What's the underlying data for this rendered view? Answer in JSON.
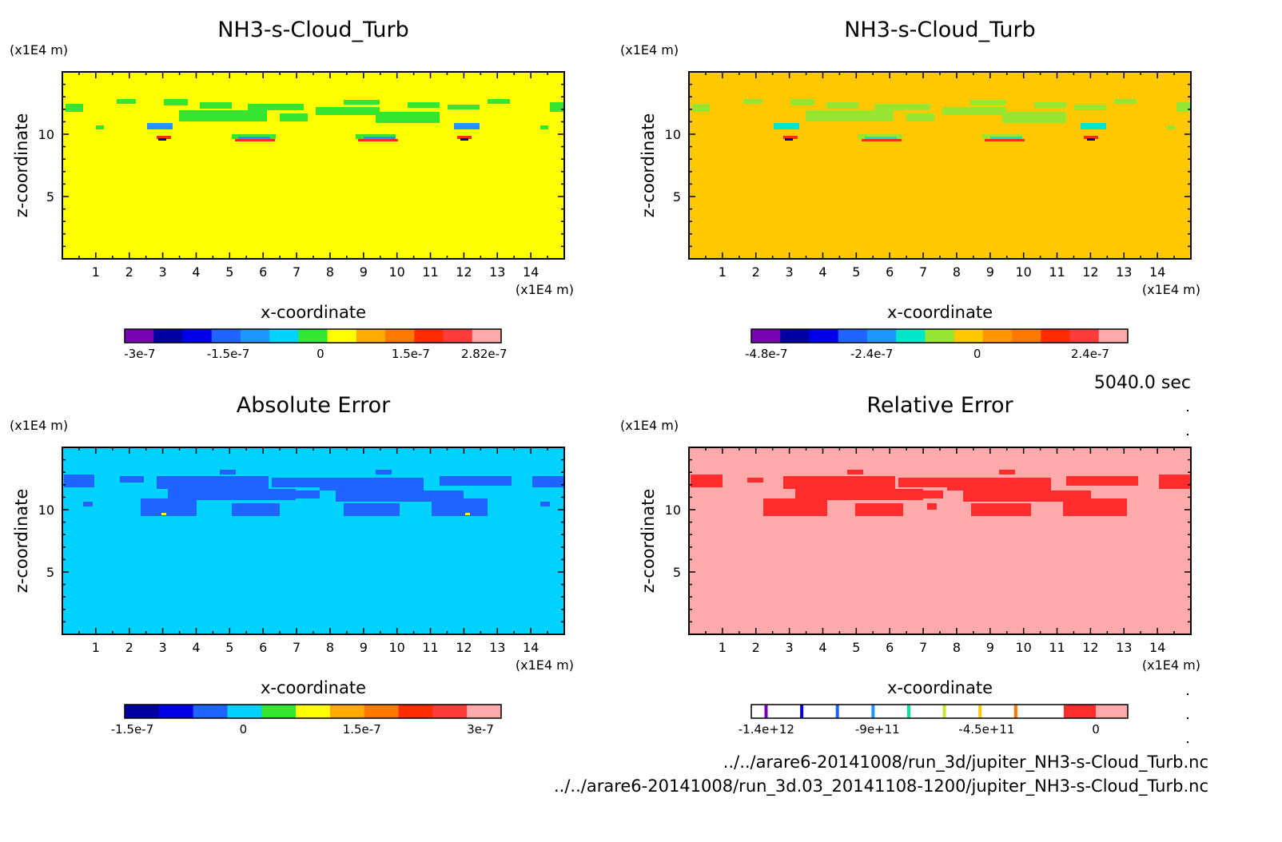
{
  "time_label": "5040.0 sec",
  "files": [
    "../../arare6-20141008/run_3d/jupiter_NH3-s-Cloud_Turb.nc",
    "../../arare6-20141008/run_3d.03_20141108-1200/jupiter_NH3-s-Cloud_Turb.nc"
  ],
  "chart_data": [
    {
      "type": "heatmap",
      "title": "NH3-s-Cloud_Turb",
      "xlabel": "x-coordinate",
      "ylabel": "z-coordinate",
      "x_unit": "(x1E4 m)",
      "y_unit": "(x1E4 m)",
      "xlim": [
        0,
        15
      ],
      "ylim": [
        0,
        15
      ],
      "x_ticks": [
        1,
        2,
        3,
        4,
        5,
        6,
        7,
        8,
        9,
        10,
        11,
        12,
        13,
        14
      ],
      "y_ticks": [
        5,
        10
      ],
      "background_level": "0",
      "colorbar": {
        "colors": [
          "#7a00b4",
          "#0000a0",
          "#0000e6",
          "#1e64ff",
          "#1e96ff",
          "#00d2ff",
          "#32e632",
          "#ffff00",
          "#ffaa00",
          "#ff7800",
          "#ff2d00",
          "#ff3c3c",
          "#ffaaaa"
        ],
        "labels": [
          "-3e-7",
          "-1.5e-7",
          "0",
          "1.5e-7",
          "2.82e-7"
        ]
      }
    },
    {
      "type": "heatmap",
      "title": "NH3-s-Cloud_Turb",
      "xlabel": "x-coordinate",
      "ylabel": "z-coordinate",
      "x_unit": "(x1E4 m)",
      "y_unit": "(x1E4 m)",
      "xlim": [
        0,
        15
      ],
      "ylim": [
        0,
        15
      ],
      "x_ticks": [
        1,
        2,
        3,
        4,
        5,
        6,
        7,
        8,
        9,
        10,
        11,
        12,
        13,
        14
      ],
      "y_ticks": [
        5,
        10
      ],
      "background_level": "0",
      "colorbar": {
        "colors": [
          "#7a00b4",
          "#0000a0",
          "#0000e6",
          "#1e64ff",
          "#1e96ff",
          "#00e6c8",
          "#96e632",
          "#ffc800",
          "#ff9600",
          "#ff7800",
          "#ff2d00",
          "#ff3c3c",
          "#ffaaaa"
        ],
        "labels": [
          "-4.8e-7",
          "-2.4e-7",
          "0",
          "2.4e-7"
        ]
      }
    },
    {
      "type": "heatmap",
      "title": "Absolute Error",
      "xlabel": "x-coordinate",
      "ylabel": "z-coordinate",
      "x_unit": "(x1E4 m)",
      "y_unit": "(x1E4 m)",
      "xlim": [
        0,
        15
      ],
      "ylim": [
        0,
        15
      ],
      "x_ticks": [
        1,
        2,
        3,
        4,
        5,
        6,
        7,
        8,
        9,
        10,
        11,
        12,
        13,
        14
      ],
      "y_ticks": [
        5,
        10
      ],
      "background_level": "0",
      "colorbar": {
        "colors": [
          "#0000a0",
          "#0000e6",
          "#1e64ff",
          "#00d2ff",
          "#32e632",
          "#ffff00",
          "#ffaa00",
          "#ff7800",
          "#ff2d00",
          "#ff3c3c",
          "#ffaaaa"
        ],
        "labels": [
          "-1.5e-7",
          "0",
          "1.5e-7",
          "3e-7"
        ]
      }
    },
    {
      "type": "heatmap",
      "title": "Relative Error",
      "xlabel": "x-coordinate",
      "ylabel": "z-coordinate",
      "x_unit": "(x1E4 m)",
      "y_unit": "(x1E4 m)",
      "xlim": [
        0,
        15
      ],
      "ylim": [
        0,
        15
      ],
      "x_ticks": [
        1,
        2,
        3,
        4,
        5,
        6,
        7,
        8,
        9,
        10,
        11,
        12,
        13,
        14
      ],
      "y_ticks": [
        5,
        10
      ],
      "background_level": "0",
      "colorbar": {
        "labels": [
          "-1.4e+12",
          "-9e+11",
          "-4.5e+11",
          "0"
        ],
        "stripe_colors": [
          "#7a00b4",
          "#0000e6",
          "#1e64ff",
          "#1e96ff",
          "#00e6a0",
          "#c8e632",
          "#ffc800",
          "#ff7800"
        ],
        "end_colors": [
          "#ff2d2d",
          "#ffaaaa"
        ]
      }
    }
  ]
}
